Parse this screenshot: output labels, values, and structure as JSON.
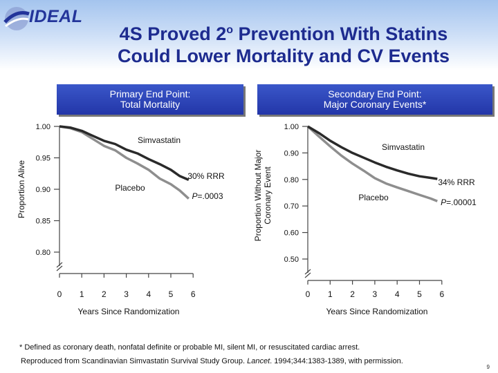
{
  "header": {
    "logo_text": "IDEAL",
    "title_line1_pre": "4S Proved 2",
    "title_sup": "o",
    "title_line1_post": " Prevention With Statins",
    "title_line2": "Could Lower Mortality and CV Events",
    "colors": {
      "title": "#1d2b8f",
      "band_top": "#a4c4ee",
      "box": "#2b40b5"
    }
  },
  "boxes": {
    "left_line1": "Primary End Point:",
    "left_line2": "Total Mortality",
    "right_line1": "Secondary End Point:",
    "right_line2": "Major Coronary Events*"
  },
  "chart_data": [
    {
      "type": "line",
      "title": "Primary End Point: Total Mortality",
      "xlabel": "Years Since Randomization",
      "ylabel": "Proportion Alive",
      "xlim": [
        0,
        6
      ],
      "ylim": [
        0.8,
        1.0
      ],
      "x_ticks": [
        "0",
        "1",
        "2",
        "3",
        "4",
        "5",
        "6"
      ],
      "y_ticks": [
        "1.00",
        "0.95",
        "0.90",
        "0.85",
        "0.80"
      ],
      "series": [
        {
          "name": "Simvastatin",
          "color": "#2a2a2a",
          "x": [
            0,
            0.5,
            1,
            1.5,
            2,
            2.5,
            3,
            3.5,
            4,
            4.5,
            5,
            5.4,
            5.8
          ],
          "y": [
            1.0,
            0.998,
            0.993,
            0.985,
            0.977,
            0.972,
            0.963,
            0.957,
            0.948,
            0.94,
            0.931,
            0.921,
            0.915
          ]
        },
        {
          "name": "Placebo",
          "color": "#8e8e8e",
          "x": [
            0,
            0.5,
            1,
            1.5,
            2,
            2.5,
            3,
            3.5,
            4,
            4.5,
            5,
            5.4,
            5.8
          ],
          "y": [
            1.0,
            0.997,
            0.991,
            0.98,
            0.969,
            0.962,
            0.95,
            0.941,
            0.931,
            0.917,
            0.908,
            0.898,
            0.885
          ]
        }
      ],
      "annotations": {
        "simvastatin": "Simvastatin",
        "placebo": "Placebo",
        "rrr": "30%  RRR",
        "p_prefix": "P",
        "p_value": "=.0003"
      }
    },
    {
      "type": "line",
      "title": "Secondary End Point: Major Coronary Events*",
      "xlabel": "Years Since Randomization",
      "ylabel": "Proportion Without Major Coronary Event",
      "xlim": [
        0,
        6
      ],
      "ylim": [
        0.5,
        1.0
      ],
      "x_ticks": [
        "0",
        "1",
        "2",
        "3",
        "4",
        "5",
        "6"
      ],
      "y_ticks": [
        "1.00",
        "0.90",
        "0.80",
        "0.70",
        "0.60",
        "0.50"
      ],
      "series": [
        {
          "name": "Simvastatin",
          "color": "#2a2a2a",
          "x": [
            0,
            0.5,
            1,
            1.5,
            2,
            2.5,
            3,
            3.5,
            4,
            4.5,
            5,
            5.5,
            5.8
          ],
          "y": [
            1.0,
            0.975,
            0.946,
            0.922,
            0.9,
            0.882,
            0.864,
            0.848,
            0.834,
            0.822,
            0.812,
            0.806,
            0.802
          ]
        },
        {
          "name": "Placebo",
          "color": "#8e8e8e",
          "x": [
            0,
            0.5,
            1,
            1.5,
            2,
            2.5,
            3,
            3.5,
            4,
            4.5,
            5,
            5.5,
            5.8
          ],
          "y": [
            1.0,
            0.962,
            0.925,
            0.89,
            0.86,
            0.833,
            0.805,
            0.785,
            0.77,
            0.756,
            0.742,
            0.728,
            0.718
          ]
        }
      ],
      "annotations": {
        "simvastatin": "Simvastatin",
        "placebo": "Placebo",
        "rrr": "34%  RRR",
        "p_prefix": "P",
        "p_value": "=.00001"
      }
    }
  ],
  "axis_label_lines": {
    "right_ylabel_line1": "Proportion Without Major",
    "right_ylabel_line2": "Coronary Event"
  },
  "footnotes": {
    "line1": "* Defined as coronary death, nonfatal definite or probable MI, silent MI, or resuscitated cardiac arrest.",
    "line2_pre": "Reproduced from Scandinavian Simvastatin Survival Study Group. ",
    "line2_journal": "Lancet",
    "line2_post": ". 1994;344:1383-1389, with permission.",
    "page_number": "9"
  }
}
